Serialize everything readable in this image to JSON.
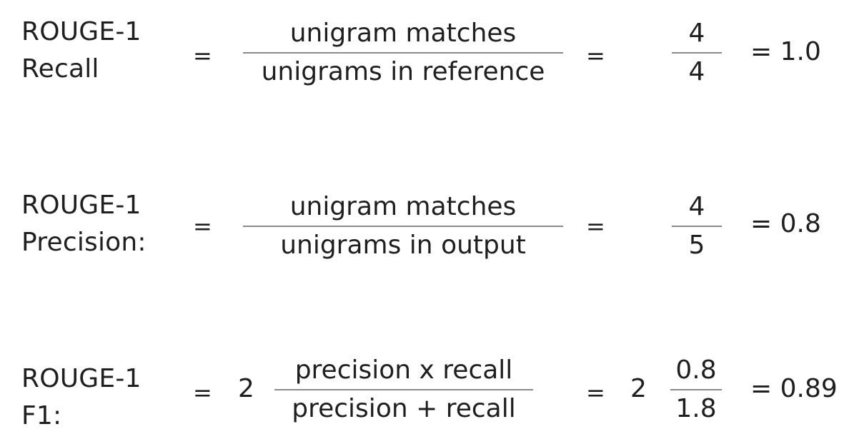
{
  "formulas": [
    {
      "label_line1": "ROUGE-1",
      "label_line2": "Recall",
      "eq1": "=",
      "fraction_numerator": "unigram matches",
      "fraction_denominator": "unigrams in reference",
      "eq2": "=",
      "value_numerator": "4",
      "value_denominator": "4",
      "result": "= 1.0"
    },
    {
      "label_line1": "ROUGE-1",
      "label_line2": "Precision:",
      "eq1": "=",
      "fraction_numerator": "unigram matches",
      "fraction_denominator": "unigrams in output",
      "eq2": "=",
      "value_numerator": "4",
      "value_denominator": "5",
      "result": "= 0.8"
    },
    {
      "label_line1": "ROUGE-1",
      "label_line2": "F1:",
      "eq1": "=",
      "coefficient1": "2",
      "fraction_numerator": "precision x recall",
      "fraction_denominator": "precision + recall",
      "eq2": "=",
      "coefficient2": "2",
      "value_numerator": "0.8",
      "value_denominator": "1.8",
      "result": "= 0.89"
    }
  ]
}
